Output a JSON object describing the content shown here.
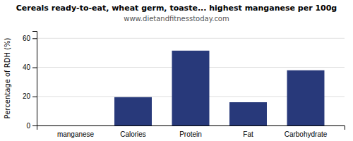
{
  "chart_data": {
    "type": "bar",
    "title": "Cereals ready-to-eat, wheat germ, toaste... highest manganese per 100g",
    "subtitle": "www.dietandfitnesstoday.com",
    "categories": [
      "manganese",
      "Calories",
      "Protein",
      "Fat",
      "Carbohydrate"
    ],
    "values": [
      0,
      19.5,
      51.5,
      16.0,
      38.0
    ],
    "color": "#28397a",
    "ylabel": "Percentage of RDH (%)",
    "ylim": [
      0,
      65
    ],
    "yticks": [
      0,
      20,
      40,
      60
    ],
    "grid": true
  }
}
